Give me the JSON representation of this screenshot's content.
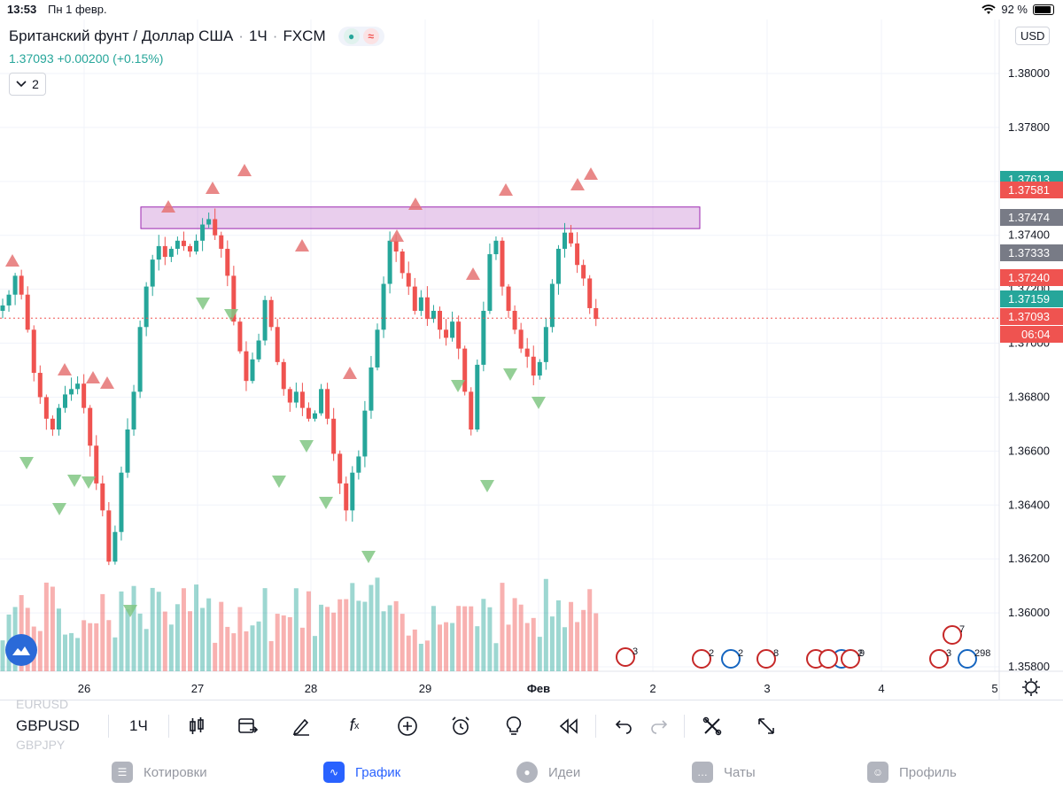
{
  "status": {
    "time": "13:53",
    "date": "Пн 1 февр.",
    "battery": "92 %"
  },
  "legend": {
    "symbol_title": "Британский фунт / Доллар США",
    "interval": "1Ч",
    "exchange": "FXCM",
    "price_line": "1.37093 +0.00200 (+0.15%)",
    "collapsed_count": "2"
  },
  "currency": "USD",
  "colors": {
    "up": "#26a69a",
    "down": "#ef5350",
    "zone": "#ce93d8",
    "accent": "#2962ff"
  },
  "price_axis": {
    "ticks": [
      "1.38000",
      "1.37800",
      "1.37400",
      "1.37200",
      "1.37000",
      "1.36800",
      "1.36600",
      "1.36400",
      "1.36200",
      "1.36000",
      "1.35800"
    ],
    "labels": [
      {
        "text": "1.37613",
        "color": "#26a69a"
      },
      {
        "text": "1.37581",
        "color": "#ef5350"
      },
      {
        "text": "1.37474",
        "color": "#787b86"
      },
      {
        "text": "1.37333",
        "color": "#787b86"
      },
      {
        "text": "1.37240",
        "color": "#ef5350"
      },
      {
        "text": "1.37159",
        "color": "#26a69a"
      },
      {
        "text": "1.37093",
        "color": "#ef5350"
      },
      {
        "text": "06:04",
        "color": "#ef5350"
      }
    ]
  },
  "time_axis": {
    "labels": [
      "26",
      "27",
      "28",
      "29",
      "Фев",
      "2",
      "3",
      "4",
      "5"
    ]
  },
  "events": [
    "3",
    "2",
    "2",
    "8",
    "2",
    "5",
    "2",
    "9",
    "7",
    "3",
    "298"
  ],
  "toolbar": {
    "symbol": "GBPUSD",
    "timeframe": "1Ч",
    "ghost_above": "EURUSD",
    "ghost_below": "GBPJPY"
  },
  "tabs": [
    {
      "label": "Котировки",
      "icon": "list-icon"
    },
    {
      "label": "График",
      "icon": "chart-icon"
    },
    {
      "label": "Идеи",
      "icon": "lightbulb-icon"
    },
    {
      "label": "Чаты",
      "icon": "chat-icon"
    },
    {
      "label": "Профиль",
      "icon": "smile-icon"
    }
  ],
  "chart_data": {
    "type": "candlestick",
    "symbol": "GBPUSD",
    "interval": "1H",
    "ylim": [
      1.3575,
      1.3815
    ],
    "x_labels": [
      "26",
      "27",
      "28",
      "29",
      "Фев",
      "2",
      "3",
      "4",
      "5"
    ],
    "resistance_zone": [
      1.37425,
      1.37505
    ],
    "last_price": 1.37093,
    "closes": [
      1.3714,
      1.3718,
      1.3725,
      1.3718,
      1.3705,
      1.3689,
      1.368,
      1.3672,
      1.3668,
      1.3676,
      1.3681,
      1.3683,
      1.3685,
      1.3676,
      1.3662,
      1.3648,
      1.3638,
      1.3619,
      1.363,
      1.3652,
      1.3668,
      1.3682,
      1.3706,
      1.3721,
      1.3731,
      1.3736,
      1.3732,
      1.3735,
      1.3738,
      1.3736,
      1.3734,
      1.3738,
      1.3744,
      1.3746,
      1.374,
      1.3735,
      1.3725,
      1.3708,
      1.3697,
      1.3686,
      1.3694,
      1.3701,
      1.3716,
      1.3706,
      1.3693,
      1.3683,
      1.3678,
      1.3682,
      1.3676,
      1.3672,
      1.3674,
      1.3683,
      1.3672,
      1.3659,
      1.3648,
      1.3638,
      1.3652,
      1.3658,
      1.3675,
      1.3691,
      1.3705,
      1.3722,
      1.3738,
      1.3734,
      1.3726,
      1.3721,
      1.3712,
      1.3717,
      1.3709,
      1.3712,
      1.3705,
      1.3702,
      1.3708,
      1.3698,
      1.3682,
      1.3668,
      1.3692,
      1.3712,
      1.3733,
      1.3738,
      1.3721,
      1.3712,
      1.3705,
      1.3698,
      1.3695,
      1.3688,
      1.3693,
      1.3706,
      1.3722,
      1.3735,
      1.3741,
      1.3737,
      1.3729,
      1.3724,
      1.3713,
      1.3709
    ]
  }
}
